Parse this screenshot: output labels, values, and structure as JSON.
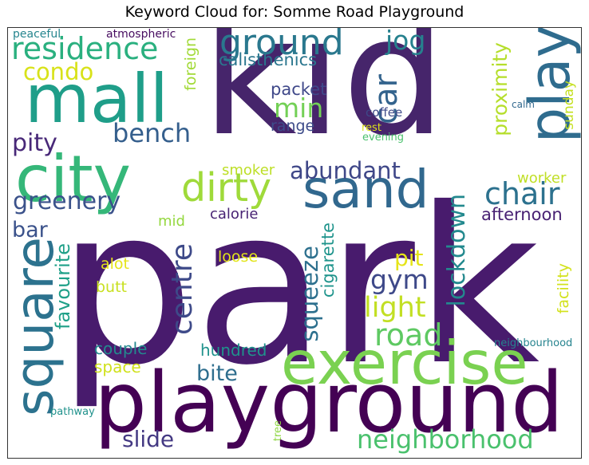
{
  "chart_data": {
    "type": "wordcloud",
    "title": "Keyword Cloud for: Somme Road Playground",
    "words": [
      {
        "text": "park",
        "color": "#481b6d",
        "vertical": false
      },
      {
        "text": "kid",
        "color": "#46256b",
        "vertical": false
      },
      {
        "text": "playground",
        "color": "#440154",
        "vertical": false
      },
      {
        "text": "mall",
        "color": "#1f9e89",
        "vertical": false
      },
      {
        "text": "city",
        "color": "#35b779",
        "vertical": false
      },
      {
        "text": "play",
        "color": "#2f6c8e",
        "vertical": true
      },
      {
        "text": "exercise",
        "color": "#7ad151",
        "vertical": false
      },
      {
        "text": "sand",
        "color": "#31688e",
        "vertical": false
      },
      {
        "text": "square",
        "color": "#2c728e",
        "vertical": true
      },
      {
        "text": "dirty",
        "color": "#9fda3a",
        "vertical": false
      },
      {
        "text": "residence",
        "color": "#2ab07f",
        "vertical": false
      },
      {
        "text": "ground",
        "color": "#2a788e",
        "vertical": false
      },
      {
        "text": "neighborhood",
        "color": "#4ac16d",
        "vertical": false
      },
      {
        "text": "road",
        "color": "#5ec962",
        "vertical": false
      },
      {
        "text": "chair",
        "color": "#2c718e",
        "vertical": false
      },
      {
        "text": "centre",
        "color": "#3e4a89",
        "vertical": true
      },
      {
        "text": "greenery",
        "color": "#3b528b",
        "vertical": false
      },
      {
        "text": "abundant",
        "color": "#3f4788",
        "vertical": false
      },
      {
        "text": "bench",
        "color": "#355f8d",
        "vertical": false
      },
      {
        "text": "gym",
        "color": "#3e4989",
        "vertical": false
      },
      {
        "text": "light",
        "color": "#c2df23",
        "vertical": false
      },
      {
        "text": "lockdown",
        "color": "#23898e",
        "vertical": true
      },
      {
        "text": "squeeze",
        "color": "#2d708e",
        "vertical": true
      },
      {
        "text": "jog",
        "color": "#26818e",
        "vertical": false
      },
      {
        "text": "car",
        "color": "#33638d",
        "vertical": true
      },
      {
        "text": "min",
        "color": "#73d056",
        "vertical": false
      },
      {
        "text": "condo",
        "color": "#d8e219",
        "vertical": false
      },
      {
        "text": "pity",
        "color": "#482878",
        "vertical": false
      },
      {
        "text": "bar",
        "color": "#3b528b",
        "vertical": false
      },
      {
        "text": "pit",
        "color": "#e5e419",
        "vertical": false
      },
      {
        "text": "slide",
        "color": "#443983",
        "vertical": false
      },
      {
        "text": "bite",
        "color": "#2e6e8e",
        "vertical": false
      },
      {
        "text": "proximity",
        "color": "#b5de2b",
        "vertical": true
      },
      {
        "text": "favourite",
        "color": "#1fa088",
        "vertical": true
      },
      {
        "text": "afternoon",
        "color": "#482173",
        "vertical": false
      },
      {
        "text": "calisthenics",
        "color": "#2a768e",
        "vertical": false
      },
      {
        "text": "packet",
        "color": "#3f4889",
        "vertical": false
      },
      {
        "text": "cigarette",
        "color": "#1f948c",
        "vertical": true
      },
      {
        "text": "couple",
        "color": "#23898e",
        "vertical": false
      },
      {
        "text": "space",
        "color": "#d0e11c",
        "vertical": false
      },
      {
        "text": "hundred",
        "color": "#20928c",
        "vertical": false
      },
      {
        "text": "foreign",
        "color": "#a2da37",
        "vertical": true
      },
      {
        "text": "facility",
        "color": "#d2e21b",
        "vertical": true
      },
      {
        "text": "range",
        "color": "#3e4c8a",
        "vertical": false
      },
      {
        "text": "loose",
        "color": "#e2e418",
        "vertical": false
      },
      {
        "text": "alot",
        "color": "#e5e419",
        "vertical": false
      },
      {
        "text": "butt",
        "color": "#c8e020",
        "vertical": false
      },
      {
        "text": "calorie",
        "color": "#482374",
        "vertical": false
      },
      {
        "text": "mid",
        "color": "#95d840",
        "vertical": false
      },
      {
        "text": "smoker",
        "color": "#bddf26",
        "vertical": false
      },
      {
        "text": "worker",
        "color": "#c0df25",
        "vertical": false
      },
      {
        "text": "sunday",
        "color": "#c5e021",
        "vertical": true
      },
      {
        "text": "coffee",
        "color": "#3e4a89",
        "vertical": false
      },
      {
        "text": "rest",
        "color": "#dde318",
        "vertical": false
      },
      {
        "text": "evening",
        "color": "#4ac16d",
        "vertical": false
      },
      {
        "text": "calm",
        "color": "#31688e",
        "vertical": false
      },
      {
        "text": "peaceful",
        "color": "#25858e",
        "vertical": false
      },
      {
        "text": "atmospheric",
        "color": "#470d60",
        "vertical": false
      },
      {
        "text": "pathway",
        "color": "#20928c",
        "vertical": false
      },
      {
        "text": "tree",
        "color": "#8fd744",
        "vertical": true
      },
      {
        "text": "neighbourhood",
        "color": "#25838e",
        "vertical": false
      }
    ]
  }
}
